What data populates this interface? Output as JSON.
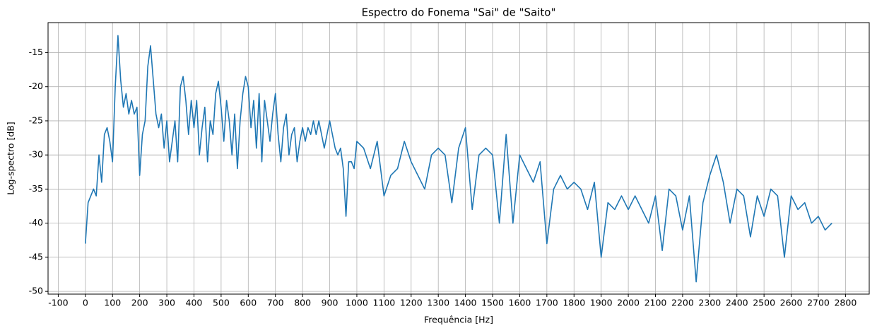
{
  "chart_data": {
    "type": "line",
    "title": "Espectro do Fonema \"Sai\" de \"Saito\"",
    "x_label": "Frequência [Hz]",
    "y_label": "Log-spectro [dB]",
    "grid": true,
    "xlim": [
      -137.5,
      2887.5
    ],
    "ylim": [
      -50.4,
      -10.6
    ],
    "xticks": [
      -100,
      0,
      100,
      200,
      300,
      400,
      500,
      600,
      700,
      800,
      900,
      1000,
      1100,
      1200,
      1300,
      1400,
      1500,
      1600,
      1700,
      1800,
      1900,
      2000,
      2100,
      2200,
      2300,
      2400,
      2500,
      2600,
      2700,
      2800
    ],
    "yticks": [
      -50,
      -45,
      -40,
      -35,
      -30,
      -25,
      -20,
      -15
    ],
    "x": [
      0,
      10,
      20,
      30,
      40,
      50,
      60,
      70,
      80,
      90,
      100,
      110,
      120,
      130,
      140,
      150,
      160,
      170,
      180,
      190,
      200,
      210,
      220,
      230,
      240,
      250,
      260,
      270,
      280,
      290,
      300,
      310,
      320,
      330,
      340,
      350,
      360,
      370,
      380,
      390,
      400,
      410,
      420,
      430,
      440,
      450,
      460,
      470,
      480,
      490,
      500,
      510,
      520,
      530,
      540,
      550,
      560,
      570,
      580,
      590,
      600,
      610,
      620,
      630,
      640,
      650,
      660,
      670,
      680,
      690,
      700,
      710,
      720,
      730,
      740,
      750,
      760,
      770,
      780,
      790,
      800,
      810,
      820,
      830,
      840,
      850,
      860,
      870,
      880,
      890,
      900,
      910,
      920,
      930,
      940,
      950,
      960,
      970,
      980,
      990,
      1000,
      1025,
      1050,
      1075,
      1100,
      1125,
      1150,
      1175,
      1200,
      1225,
      1250,
      1275,
      1300,
      1325,
      1350,
      1375,
      1400,
      1425,
      1450,
      1475,
      1500,
      1525,
      1550,
      1575,
      1600,
      1625,
      1650,
      1675,
      1700,
      1725,
      1750,
      1775,
      1800,
      1825,
      1850,
      1875,
      1900,
      1925,
      1950,
      1975,
      2000,
      2025,
      2050,
      2075,
      2100,
      2125,
      2150,
      2175,
      2200,
      2225,
      2250,
      2275,
      2300,
      2325,
      2350,
      2375,
      2400,
      2425,
      2450,
      2475,
      2500,
      2525,
      2550,
      2575,
      2600,
      2625,
      2650,
      2675,
      2700,
      2725,
      2750
    ],
    "series": [
      {
        "color": "#1f77b4",
        "values": [
          -43,
          -37,
          -36,
          -35,
          -36,
          -30,
          -34,
          -27,
          -26,
          -28,
          -31,
          -20,
          -12.5,
          -19,
          -23,
          -21,
          -24,
          -22,
          -24,
          -23,
          -33,
          -27,
          -25,
          -17,
          -14,
          -19,
          -24,
          -26,
          -24,
          -29,
          -25,
          -31,
          -28,
          -25,
          -31,
          -20,
          -18.5,
          -22,
          -27,
          -22,
          -26,
          -22,
          -30,
          -26,
          -23,
          -31,
          -25,
          -27,
          -21,
          -19.2,
          -23,
          -28,
          -22,
          -25,
          -30,
          -24,
          -32,
          -25,
          -21,
          -18.5,
          -20,
          -26,
          -22,
          -29,
          -21,
          -31,
          -22,
          -25,
          -28,
          -24,
          -21,
          -27,
          -31,
          -26,
          -24,
          -30,
          -27,
          -26,
          -31,
          -28,
          -26,
          -28,
          -26,
          -27,
          -25,
          -27,
          -25,
          -27,
          -29,
          -27,
          -25,
          -27,
          -29,
          -30,
          -29,
          -32,
          -39,
          -31,
          -31,
          -32,
          -28,
          -29,
          -32,
          -28,
          -36,
          -33,
          -32,
          -28,
          -31,
          -33,
          -35,
          -30,
          -29,
          -30,
          -37,
          -29,
          -26,
          -38,
          -30,
          -29,
          -30,
          -40,
          -27,
          -40,
          -30,
          -32,
          -34,
          -31,
          -43,
          -35,
          -33,
          -35,
          -34,
          -35,
          -38,
          -34,
          -45,
          -37,
          -38,
          -36,
          -38,
          -36,
          -38,
          -40,
          -36,
          -44,
          -35,
          -36,
          -41,
          -36,
          -48.6,
          -37,
          -33,
          -30,
          -34,
          -40,
          -35,
          -36,
          -42,
          -36,
          -39,
          -35,
          -36,
          -45,
          -36,
          -38,
          -37,
          -40,
          -39,
          -41,
          -40
        ]
      }
    ]
  }
}
